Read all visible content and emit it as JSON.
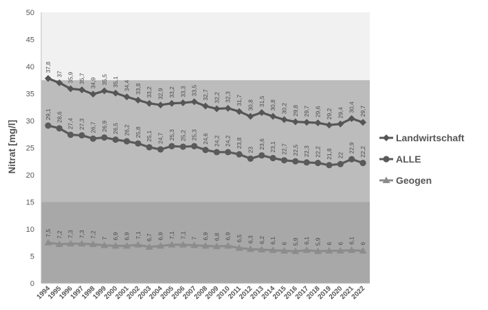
{
  "chart_data": {
    "type": "line",
    "title": "",
    "xlabel": "",
    "ylabel": "Nitrat [mg/l]",
    "ylim": [
      0,
      50
    ],
    "yticks": [
      0,
      5,
      10,
      15,
      20,
      25,
      30,
      35,
      40,
      45,
      50
    ],
    "grid": false,
    "legend_position": "right",
    "x": [
      "1994",
      "1995",
      "1996",
      "1997",
      "1998",
      "1999",
      "2000",
      "2001",
      "2002",
      "2003",
      "2004",
      "2005",
      "2006",
      "2007",
      "2008",
      "2009",
      "2010",
      "2011",
      "2012",
      "2013",
      "2014",
      "2015",
      "2016",
      "2017",
      "2018",
      "2019",
      "2020",
      "2021",
      "2022"
    ],
    "background_bands": [
      {
        "from": 0,
        "to": 15,
        "color": "#a8a8a8"
      },
      {
        "from": 15,
        "to": 37.5,
        "color": "#bcbcbc"
      },
      {
        "from": 37.5,
        "to": 50,
        "color": "#f1f1f1"
      }
    ],
    "series": [
      {
        "name": "Landwirtschaft",
        "marker": "diamond",
        "color": "#555555",
        "values": [
          37.8,
          37,
          35.9,
          35.7,
          34.9,
          35.5,
          35.1,
          34.4,
          33.8,
          33.2,
          32.9,
          33.2,
          33.3,
          33.5,
          32.7,
          32.2,
          32.3,
          31.7,
          30.8,
          31.5,
          30.8,
          30.2,
          29.8,
          29.7,
          29.6,
          29.2,
          29.4,
          30.4,
          29.7
        ],
        "labels": [
          "37,8",
          "37",
          "35,9",
          "35,7",
          "34,9",
          "35,5",
          "35,1",
          "34,4",
          "33,8",
          "33,2",
          "32,9",
          "33,2",
          "33,3",
          "33,5",
          "32,7",
          "32,2",
          "32,3",
          "31,7",
          "30,8",
          "31,5",
          "30,8",
          "30,2",
          "29,8",
          "29,7",
          "29,6",
          "29,2",
          "29,4",
          "30,4",
          "29,7"
        ]
      },
      {
        "name": "ALLE",
        "marker": "circle",
        "color": "#5a5a5a",
        "values": [
          29.1,
          28.6,
          27.4,
          27.3,
          26.7,
          26.9,
          26.5,
          26.2,
          25.8,
          25.1,
          24.7,
          25.3,
          25.2,
          25.3,
          24.6,
          24.2,
          24.2,
          23.8,
          23,
          23.6,
          23.1,
          22.7,
          22.5,
          22.3,
          22.2,
          21.8,
          22,
          22.9,
          22.2
        ],
        "labels": [
          "29,1",
          "28,6",
          "27,4",
          "27,3",
          "26,7",
          "26,9",
          "26,5",
          "26,2",
          "25,8",
          "25,1",
          "24,7",
          "25,3",
          "25,2",
          "25,3",
          "24,6",
          "24,2",
          "24,2",
          "23,8",
          "23",
          "23,6",
          "23,1",
          "22,7",
          "22,5",
          "22,3",
          "22,2",
          "21,8",
          "22",
          "22,9",
          "22,2"
        ]
      },
      {
        "name": "Geogen",
        "marker": "triangle",
        "color": "#8c8c8c",
        "values": [
          7.5,
          7.2,
          7.3,
          7.3,
          7.2,
          7,
          6.9,
          6.9,
          7.1,
          6.7,
          6.9,
          7.1,
          7.1,
          7,
          6.9,
          6.8,
          6.9,
          6.5,
          6.3,
          6.2,
          6.1,
          6,
          5.9,
          6.1,
          5.9,
          6,
          6,
          6.1,
          6
        ],
        "labels": [
          "7,5",
          "7,2",
          "7,3",
          "7,3",
          "7,2",
          "7",
          "6,9",
          "6,9",
          "7,1",
          "6,7",
          "6,9",
          "7,1",
          "7,1",
          "7",
          "6,9",
          "6,8",
          "6,9",
          "6,5",
          "6,3",
          "6,2",
          "6,1",
          "6",
          "5,9",
          "6,1",
          "5,9",
          "6",
          "6",
          "6,1",
          "6"
        ]
      }
    ]
  }
}
